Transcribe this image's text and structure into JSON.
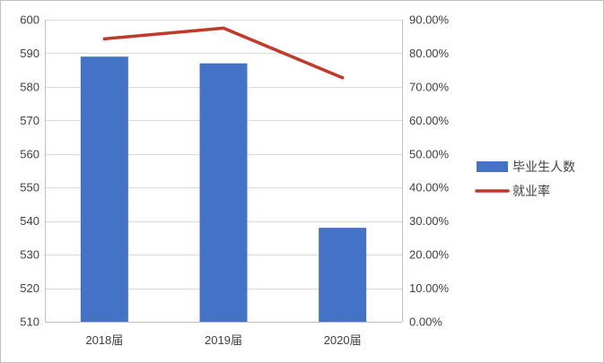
{
  "chart_data": {
    "type": "bar",
    "categories": [
      "2018届",
      "2019届",
      "2020届"
    ],
    "series": [
      {
        "name": "毕业生人数",
        "type": "bar",
        "axis": "left",
        "values": [
          589,
          587,
          538
        ],
        "color": "#4472c4"
      },
      {
        "name": "就业率",
        "type": "line",
        "axis": "right",
        "values": [
          0.843,
          0.875,
          0.727
        ],
        "color": "#c0392b"
      }
    ],
    "y_left": {
      "ylim": [
        510,
        600
      ],
      "ticks": [
        "510",
        "520",
        "530",
        "540",
        "550",
        "560",
        "570",
        "580",
        "590",
        "600"
      ]
    },
    "y_right": {
      "ylim": [
        0,
        0.9
      ],
      "ticks": [
        "0.00%",
        "10.00%",
        "20.00%",
        "30.00%",
        "40.00%",
        "50.00%",
        "60.00%",
        "70.00%",
        "80.00%",
        "90.00%"
      ]
    },
    "grid": true,
    "legend": {
      "position": "right",
      "entries": [
        "毕业生人数",
        "就业率"
      ]
    }
  }
}
